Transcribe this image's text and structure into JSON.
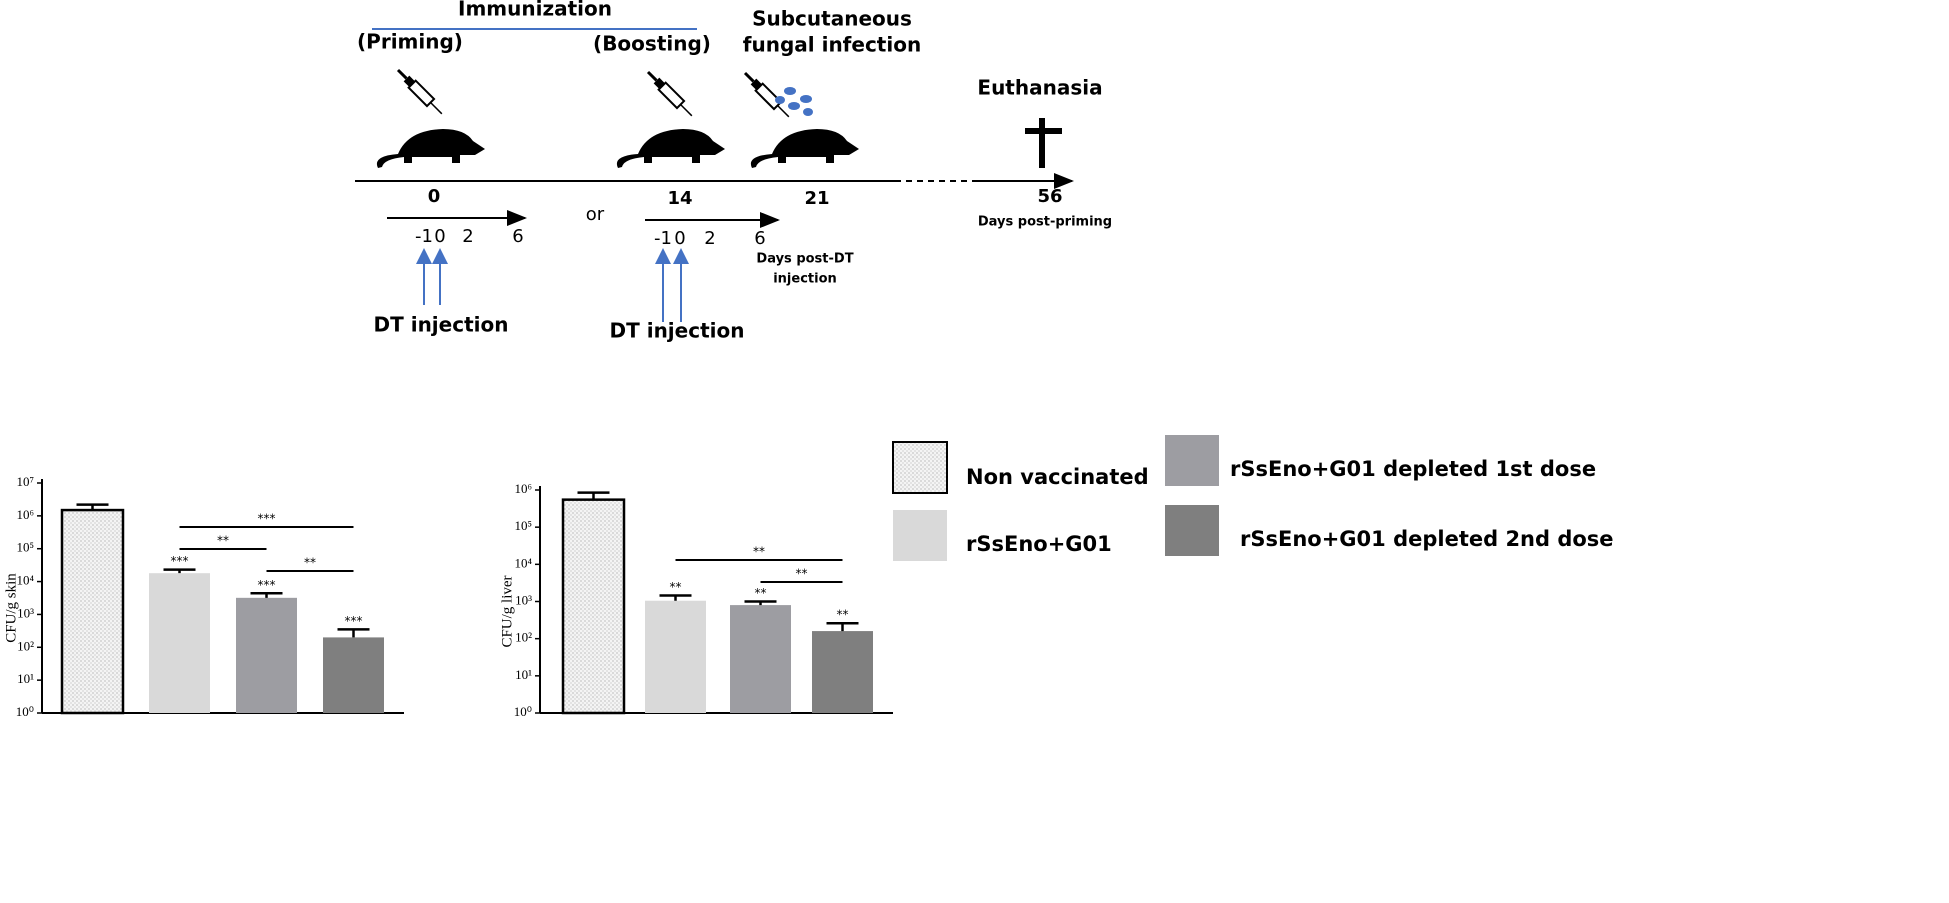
{
  "diagram": {
    "immunization": "Immunization",
    "priming": "(Priming)",
    "boosting": "(Boosting)",
    "infection_line1": "Subcutaneous",
    "infection_line2": "fungal infection",
    "euthanasia": "Euthanasia",
    "day0": "0",
    "day14": "14",
    "day21": "21",
    "day56": "56",
    "days_post_priming": "Days post-priming",
    "or": "or",
    "dt_ticks_1": [
      "-1",
      "0",
      "2",
      "6"
    ],
    "dt_ticks_2": [
      "-1",
      "0",
      "2",
      "6"
    ],
    "days_post_dt_line1": "Days post-DT",
    "days_post_dt_line2": "injection",
    "dt_injection_1": "DT injection",
    "dt_injection_2": "DT injection"
  },
  "legend": [
    {
      "name": "Non vaccinated",
      "color": "#f4f4f4"
    },
    {
      "name": "rSsEno+G01",
      "color": "#d9d9d9"
    },
    {
      "name": "rSsEno+G01 depleted 1st dose",
      "color": "#9d9da2"
    },
    {
      "name": "rSsEno+G01 depleted 2nd dose",
      "color": "#7f7f7f"
    }
  ],
  "chart_data": [
    {
      "type": "bar",
      "y_label": "CFU/g skin",
      "log_scale": true,
      "categories": [
        null,
        null,
        null,
        null
      ],
      "values": [
        1500000,
        18000,
        3200,
        200
      ],
      "errors": [
        700000,
        5000,
        1200,
        150
      ],
      "ylim": [
        1,
        10000000
      ],
      "yticks": [
        {
          "value": 1,
          "label": "10⁰"
        },
        {
          "value": 10,
          "label": "10¹"
        },
        {
          "value": 100,
          "label": "10²"
        },
        {
          "value": 1000,
          "label": "10³"
        },
        {
          "value": 10000,
          "label": "10⁴"
        },
        {
          "value": 100000,
          "label": "10⁵"
        },
        {
          "value": 1000000,
          "label": "10⁶"
        },
        {
          "value": 10000000,
          "label": "10⁷"
        }
      ],
      "significance": [
        null,
        "***",
        "***",
        "***"
      ],
      "comparisons": [
        {
          "from": 1,
          "to": 3,
          "label": "***"
        },
        {
          "from": 1,
          "to": 2,
          "label": "**"
        },
        {
          "from": 2,
          "to": 3,
          "label": "**"
        }
      ]
    },
    {
      "type": "bar",
      "y_label": "CFU/g liver",
      "log_scale": true,
      "categories": [
        null,
        null,
        null,
        null
      ],
      "values": [
        550000,
        1050,
        800,
        160
      ],
      "errors": [
        300000,
        400,
        200,
        100
      ],
      "ylim": [
        1,
        1000000
      ],
      "yticks": [
        {
          "value": 1,
          "label": "10⁰"
        },
        {
          "value": 10,
          "label": "10¹"
        },
        {
          "value": 100,
          "label": "10²"
        },
        {
          "value": 1000,
          "label": "10³"
        },
        {
          "value": 10000,
          "label": "10⁴"
        },
        {
          "value": 100000,
          "label": "10⁵"
        },
        {
          "value": 1000000,
          "label": "10⁶"
        }
      ],
      "significance": [
        null,
        "**",
        "**",
        "**"
      ],
      "comparisons": [
        {
          "from": 1,
          "to": 3,
          "label": "**"
        },
        {
          "from": 2,
          "to": 3,
          "label": "**"
        }
      ]
    }
  ]
}
